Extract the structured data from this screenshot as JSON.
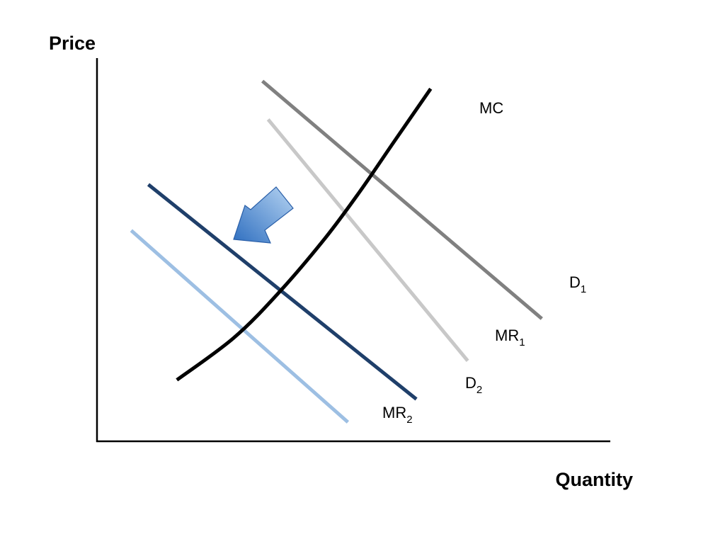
{
  "chart_data": {
    "type": "line",
    "title": "",
    "xlabel": "Quantity",
    "ylabel": "Price",
    "grid": false,
    "legend": "none",
    "ticks": false,
    "series": [
      {
        "name": "MC",
        "label_main": "MC",
        "label_sub": "",
        "color": "#000000",
        "shape": "curve",
        "x": [
          1.4,
          2.4,
          3.2,
          4.0,
          4.6,
          5.2,
          5.85
        ],
        "y": [
          1.6,
          2.7,
          3.9,
          5.3,
          6.5,
          7.8,
          9.2
        ]
      },
      {
        "name": "D1",
        "label_main": "D",
        "label_sub": "1",
        "color": "#808080",
        "shape": "line",
        "x": [
          2.9,
          7.8
        ],
        "y": [
          9.4,
          3.2
        ]
      },
      {
        "name": "MR1",
        "label_main": "MR",
        "label_sub": "1",
        "color": "#c8c8c8",
        "shape": "line",
        "x": [
          3.0,
          6.5
        ],
        "y": [
          8.4,
          2.1
        ]
      },
      {
        "name": "D2",
        "label_main": "D",
        "label_sub": "2",
        "color": "#1f3f6a",
        "shape": "line",
        "x": [
          0.9,
          5.6
        ],
        "y": [
          6.7,
          1.1
        ]
      },
      {
        "name": "MR2",
        "label_main": "MR",
        "label_sub": "2",
        "color": "#9dbfe3",
        "shape": "line",
        "x": [
          0.6,
          4.4
        ],
        "y": [
          5.5,
          0.5
        ]
      }
    ],
    "xlim": [
      0,
      9
    ],
    "ylim": [
      0,
      10
    ],
    "annotation": {
      "type": "arrow",
      "meaning": "shift",
      "icon": "arrow-down-left-icon",
      "color_light": "#b6d4f2",
      "color_dark": "#2f6fc0"
    }
  }
}
